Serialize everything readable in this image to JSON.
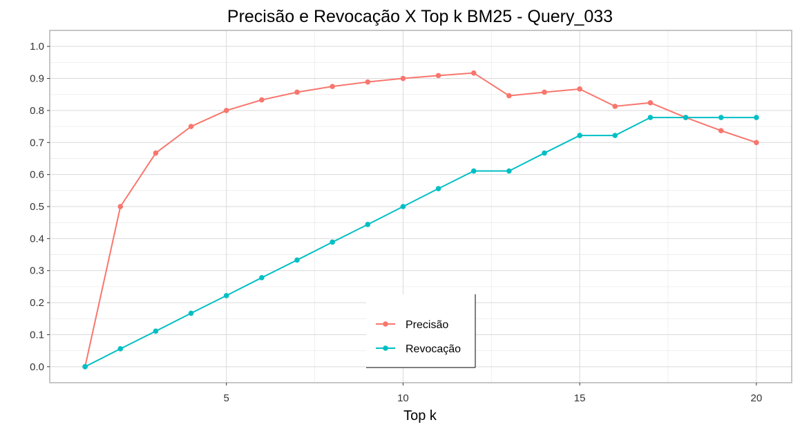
{
  "chart_data": {
    "type": "line",
    "title": "Precisão e Revocação X Top k BM25 - Query_033",
    "xlabel": "Top k",
    "ylabel": "",
    "xlim": [
      0.0,
      21.0
    ],
    "ylim": [
      -0.05,
      1.05
    ],
    "x_ticks": [
      5,
      10,
      15,
      20
    ],
    "x_tick_labels": [
      "5",
      "10",
      "15",
      "20"
    ],
    "y_ticks": [
      0.0,
      0.1,
      0.2,
      0.3,
      0.4,
      0.5,
      0.6,
      0.7,
      0.8,
      0.9,
      1.0
    ],
    "y_tick_labels": [
      "0.0",
      "0.1",
      "0.2",
      "0.3",
      "0.4",
      "0.5",
      "0.6",
      "0.7",
      "0.8",
      "0.9",
      "1.0"
    ],
    "grid": true,
    "legend_position": "bottom-center",
    "x": [
      1,
      2,
      3,
      4,
      5,
      6,
      7,
      8,
      9,
      10,
      11,
      12,
      13,
      14,
      15,
      16,
      17,
      18,
      19,
      20
    ],
    "series": [
      {
        "name": "Precisão",
        "color": "#F8766D",
        "values": [
          0.0,
          0.5,
          0.667,
          0.75,
          0.8,
          0.833,
          0.857,
          0.875,
          0.889,
          0.9,
          0.909,
          0.917,
          0.846,
          0.857,
          0.867,
          0.813,
          0.824,
          0.778,
          0.737,
          0.7
        ]
      },
      {
        "name": "Revocação",
        "color": "#00BFC4",
        "values": [
          0.0,
          0.056,
          0.111,
          0.167,
          0.222,
          0.278,
          0.333,
          0.389,
          0.444,
          0.5,
          0.556,
          0.611,
          0.611,
          0.667,
          0.722,
          0.722,
          0.778,
          0.778,
          0.778,
          0.778
        ]
      }
    ]
  }
}
